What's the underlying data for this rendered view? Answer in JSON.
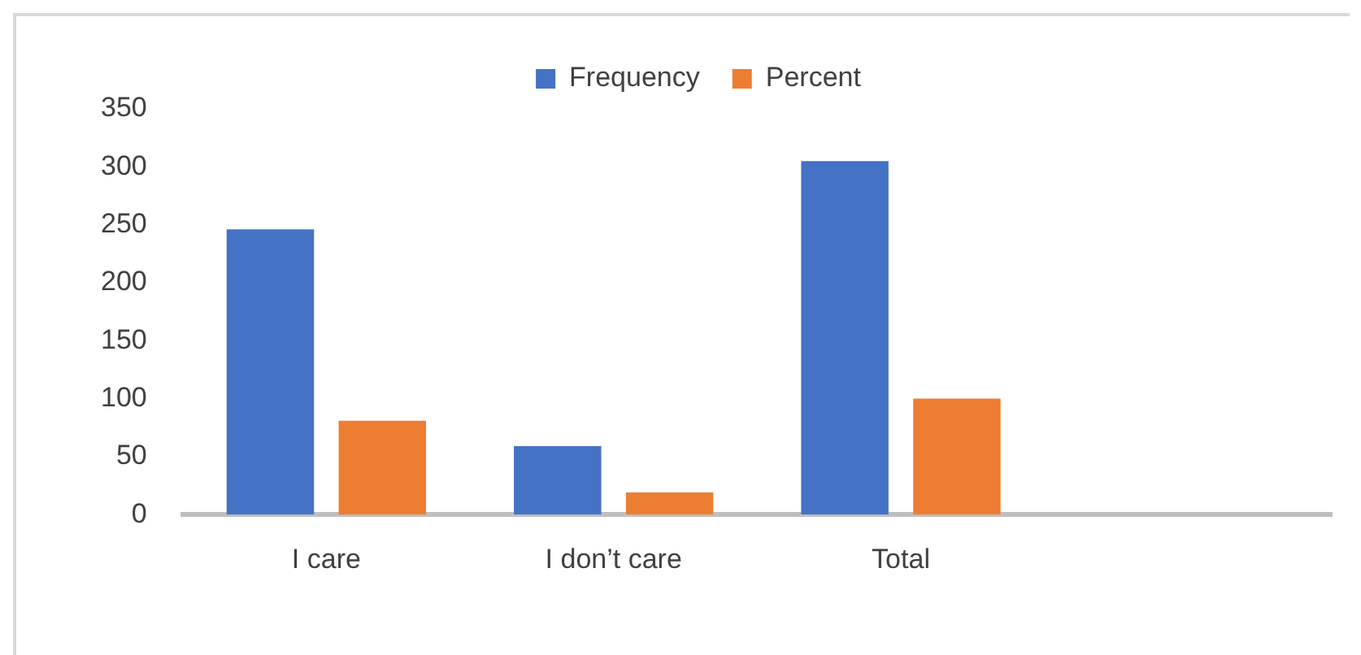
{
  "chart_data": {
    "type": "bar",
    "categories": [
      "I care",
      "I don’t care",
      "Total",
      null
    ],
    "series": [
      {
        "name": "Frequency",
        "color": "#4472c4",
        "values": [
          246,
          59,
          305,
          null
        ]
      },
      {
        "name": "Percent",
        "color": "#ed7d31",
        "values": [
          81,
          19,
          100,
          null
        ]
      }
    ],
    "ylim": [
      0,
      350
    ],
    "yticks": [
      0,
      50,
      100,
      150,
      200,
      250,
      300,
      350
    ],
    "grid": false,
    "legend": "top"
  }
}
